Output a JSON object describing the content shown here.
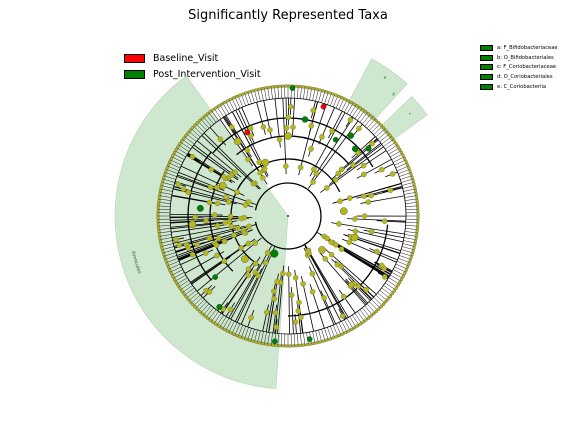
{
  "title": "Significantly Represented Taxa",
  "legend": [
    {
      "label": "Baseline_Visit",
      "color": "#ff0000"
    },
    {
      "label": "Post_Intervention_Visit",
      "color": "#008000"
    }
  ],
  "clade_legend": [
    {
      "label": "a: F_Bifidobacteriaceae",
      "color": "#008000"
    },
    {
      "label": "b: O_Bifidobacteriales",
      "color": "#008000"
    },
    {
      "label": "c: F_Coriobacteriaceae",
      "color": "#008000"
    },
    {
      "label": "d: O_Coriobacteriales",
      "color": "#008000"
    },
    {
      "label": "e: C_Coriobacteriia",
      "color": "#008000"
    }
  ],
  "sector_labels": {
    "large": "Firmicutes",
    "small_1": "a",
    "small_2": "b",
    "small_3": "c"
  },
  "colors": {
    "node_default": "#b5b81a",
    "node_enriched": "#008000",
    "node_baseline": "#ff0000",
    "highlight": "#cde6cd",
    "edge": "#000000"
  }
}
